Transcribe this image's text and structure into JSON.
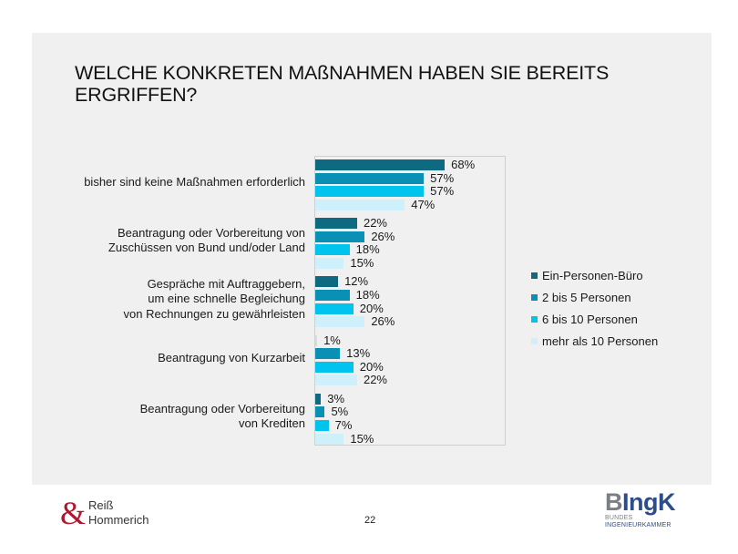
{
  "slide": {
    "title": "WELCHE KONKRETEN MAßNAHMEN HABEN SIE BEREITS ERGRIFFEN?",
    "page_number": "22"
  },
  "logos": {
    "left": {
      "symbol": "&",
      "line1": "Reiß",
      "line2": "Hommerich"
    },
    "right": {
      "main_b": "B",
      "main_rest": "IngK",
      "line1": "BUNDES",
      "line2": "INGENIEURKAMMER"
    }
  },
  "chart_data": {
    "type": "bar",
    "orientation": "horizontal",
    "title": "WELCHE KONKRETEN MAßNAHMEN HABEN SIE BEREITS ERGRIFFEN?",
    "xlabel": "",
    "ylabel": "",
    "xlim": [
      0,
      100
    ],
    "grid": false,
    "legend_position": "right",
    "categories": [
      [
        "bisher sind keine Maßnahmen erforderlich"
      ],
      [
        "Beantragung oder Vorbereitung von",
        "Zuschüssen von Bund und/oder Land"
      ],
      [
        "Gespräche mit Auftraggebern,",
        "um eine schnelle Begleichung",
        "von Rechnungen zu gewährleisten"
      ],
      [
        "Beantragung von Kurzarbeit"
      ],
      [
        "Beantragung oder Vorbereitung",
        "von Krediten"
      ]
    ],
    "series": [
      {
        "name": "Ein-Personen-Büro",
        "color": "#0e6a80",
        "values": [
          68,
          22,
          12,
          1,
          3
        ]
      },
      {
        "name": "2 bis 5 Personen",
        "color": "#0a8fb5",
        "values": [
          57,
          26,
          18,
          13,
          5
        ]
      },
      {
        "name": "6 bis 10 Personen",
        "color": "#00c4ee",
        "values": [
          57,
          18,
          20,
          20,
          7
        ]
      },
      {
        "name": "mehr als 10 Personen",
        "color": "#cdf0fb",
        "values": [
          47,
          15,
          26,
          22,
          15
        ]
      }
    ],
    "value_suffix": "%"
  }
}
